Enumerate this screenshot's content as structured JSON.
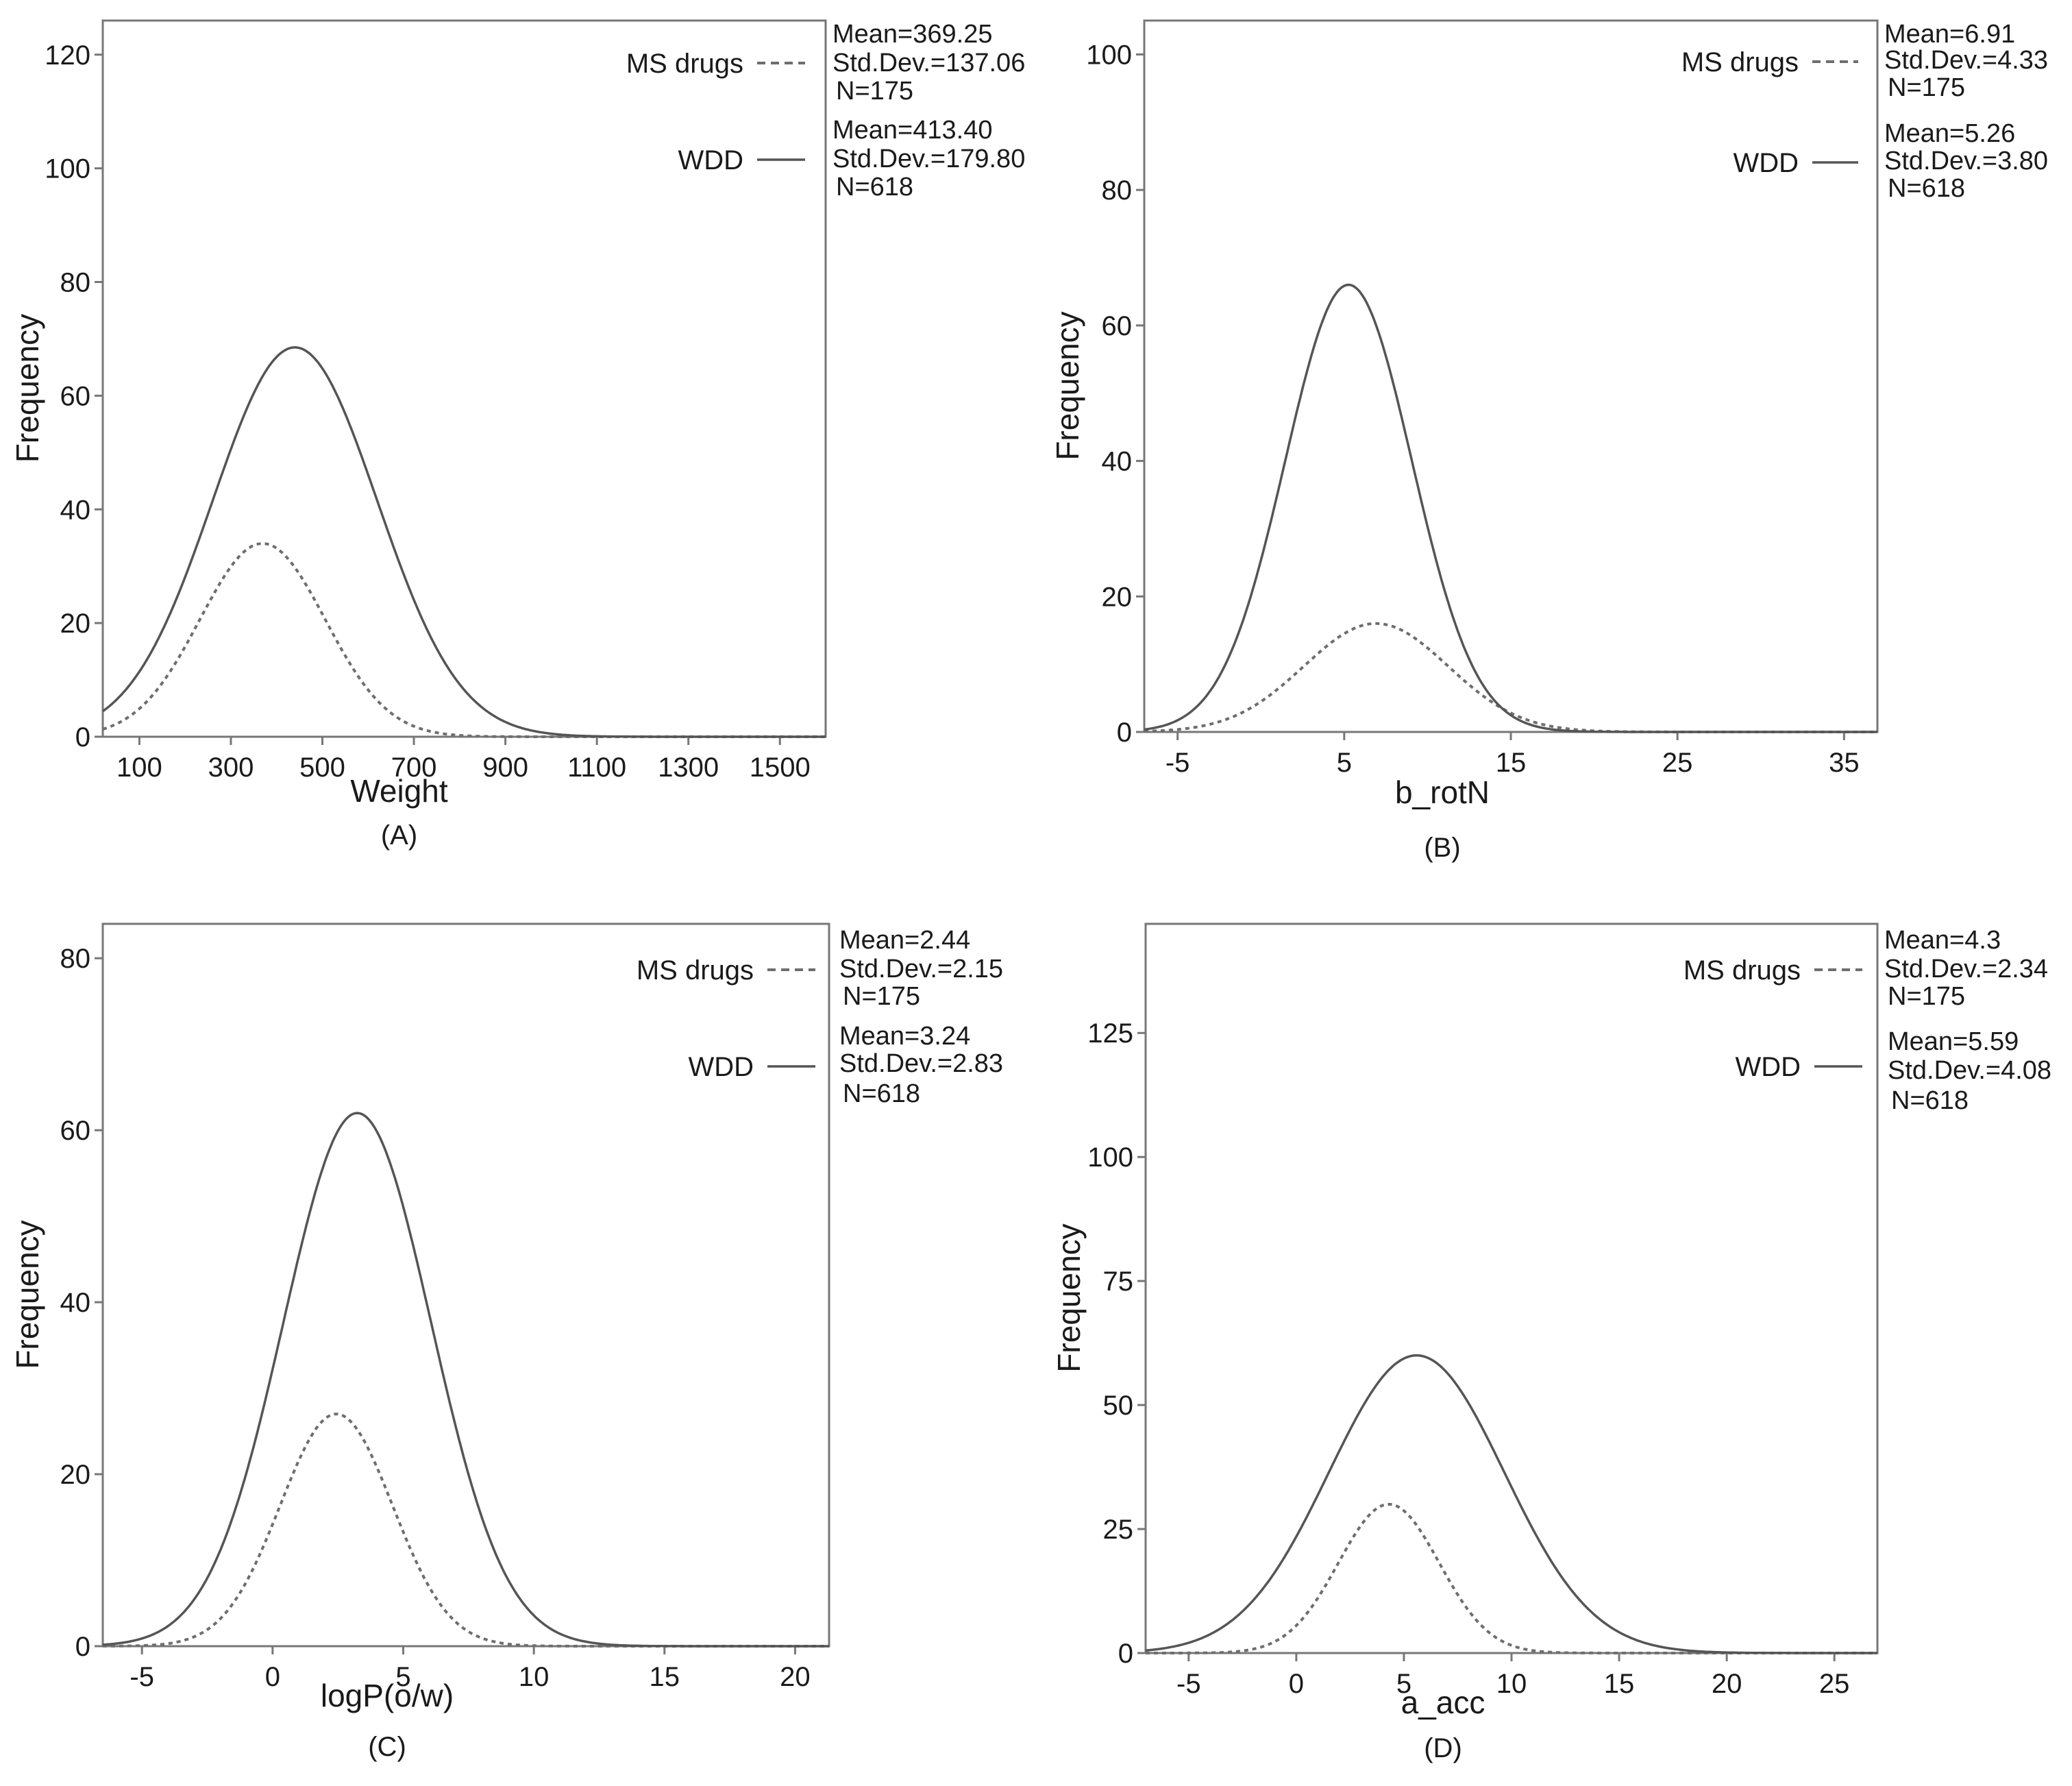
{
  "colors": {
    "line": "#555555",
    "dashed": "#6e6e6e",
    "frame": "#777777",
    "text": "#1a1a1a"
  },
  "chart_data": [
    {
      "type": "line",
      "panel_label": "(A)",
      "xlabel": "Weight",
      "ylabel": "Frequency",
      "xlim": [
        20,
        1600
      ],
      "ylim": [
        0,
        126
      ],
      "xticks": [
        100,
        300,
        500,
        700,
        900,
        1100,
        1300,
        1500
      ],
      "yticks": [
        0,
        20,
        40,
        60,
        80,
        100,
        120
      ],
      "series": [
        {
          "name": "MS drugs",
          "style": "dashed",
          "mean": 369.25,
          "sd": 137.06,
          "n": 175,
          "peak": 34,
          "stats": [
            "Mean=369.25",
            "Std.Dev.=137.06",
            "N=175"
          ]
        },
        {
          "name": "WDD",
          "style": "solid",
          "mean": 413.4,
          "sd": 179.8,
          "n": 618,
          "peak": 68.5,
          "peak_x": 440,
          "stats": [
            "Mean=413.40",
            "Std.Dev.=179.80",
            "N=618"
          ]
        }
      ]
    },
    {
      "type": "line",
      "panel_label": "(B)",
      "xlabel": "b_rotN",
      "ylabel": "Frequency",
      "xlim": [
        -7,
        37
      ],
      "ylim": [
        0,
        105
      ],
      "xticks": [
        -5,
        5,
        15,
        25,
        35
      ],
      "yticks": [
        0,
        20,
        40,
        60,
        80,
        100
      ],
      "series": [
        {
          "name": "MS drugs",
          "style": "dashed",
          "mean": 6.91,
          "sd": 4.33,
          "n": 175,
          "peak": 16,
          "stats": [
            "Mean=6.91",
            "Std.Dev.=4.33",
            "N=175"
          ]
        },
        {
          "name": "WDD",
          "style": "solid",
          "mean": 5.26,
          "sd": 3.8,
          "n": 618,
          "peak": 66,
          "stats": [
            "Mean=5.26",
            "Std.Dev.=3.80",
            "N=618"
          ]
        }
      ]
    },
    {
      "type": "line",
      "panel_label": "(C)",
      "xlabel": "logP(o/w)",
      "ylabel": "Frequency",
      "xlim": [
        -6.5,
        21.3
      ],
      "ylim": [
        0,
        84
      ],
      "xticks": [
        -5,
        0,
        5,
        10,
        15,
        20
      ],
      "yticks": [
        0,
        20,
        40,
        60,
        80
      ],
      "series": [
        {
          "name": "MS drugs",
          "style": "dashed",
          "mean": 2.44,
          "sd": 2.15,
          "n": 175,
          "peak": 27,
          "stats": [
            "Mean=2.44",
            "Std.Dev.=2.15",
            "N=175"
          ]
        },
        {
          "name": "WDD",
          "style": "solid",
          "mean": 3.24,
          "sd": 2.83,
          "n": 618,
          "peak": 62,
          "stats": [
            "Mean=3.24",
            "Std.Dev.=2.83",
            "N=618"
          ]
        }
      ]
    },
    {
      "type": "line",
      "panel_label": "(D)",
      "xlabel": "a_acc",
      "ylabel": "Frequency",
      "xlim": [
        -7,
        27
      ],
      "ylim": [
        0,
        147
      ],
      "xticks": [
        -5,
        0,
        5,
        10,
        15,
        20,
        25
      ],
      "yticks": [
        0,
        25,
        50,
        75,
        100,
        125
      ],
      "series": [
        {
          "name": "MS drugs",
          "style": "dashed",
          "mean": 4.3,
          "sd": 2.34,
          "n": 175,
          "peak": 30,
          "stats": [
            "Mean=4.3",
            "Std.Dev.=2.34",
            "N=175"
          ]
        },
        {
          "name": "WDD",
          "style": "solid",
          "mean": 5.59,
          "sd": 4.08,
          "n": 618,
          "peak": 60,
          "stats": [
            "Mean=5.59",
            "Std.Dev.=4.08",
            "N=618"
          ]
        }
      ]
    }
  ]
}
